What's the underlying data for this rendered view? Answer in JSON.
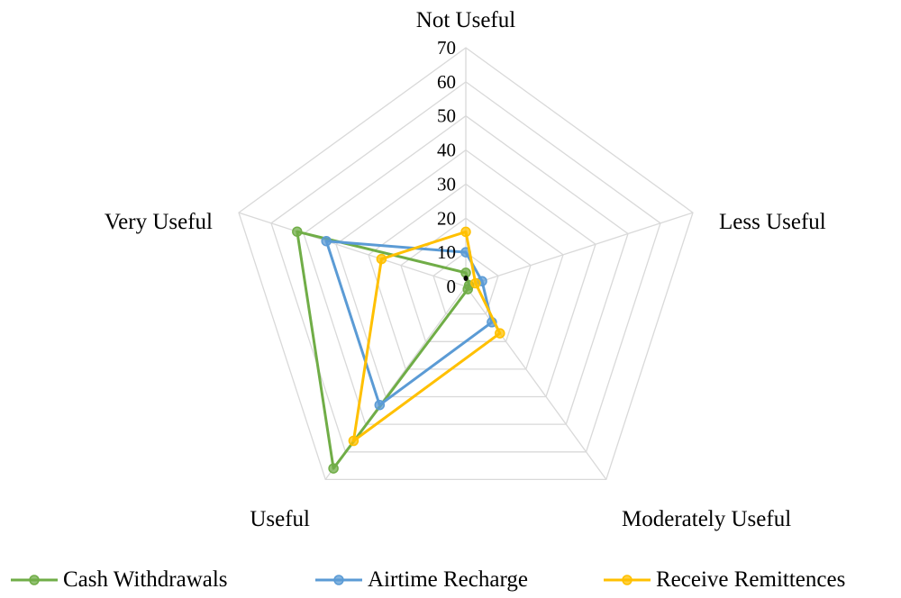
{
  "chart_data": {
    "type": "radar",
    "categories": [
      "Not Useful",
      "Less Useful",
      "Moderately Useful",
      "Useful",
      "Very Useful"
    ],
    "ticks": [
      "0",
      "10",
      "20",
      "30",
      "40",
      "50",
      "60",
      "70"
    ],
    "rlim": [
      0,
      70
    ],
    "grid": true,
    "legend_position": "bottom",
    "series": [
      {
        "name": "Cash Withdrawals",
        "color": "#70AD47",
        "values": [
          4,
          1,
          1,
          66,
          52
        ]
      },
      {
        "name": "Airtime Recharge",
        "color": "#5B9BD5",
        "values": [
          10,
          5,
          13,
          43,
          43
        ]
      },
      {
        "name": "Receive Remittences",
        "color": "#FFC000",
        "values": [
          16,
          3,
          17,
          56,
          26
        ]
      }
    ]
  }
}
